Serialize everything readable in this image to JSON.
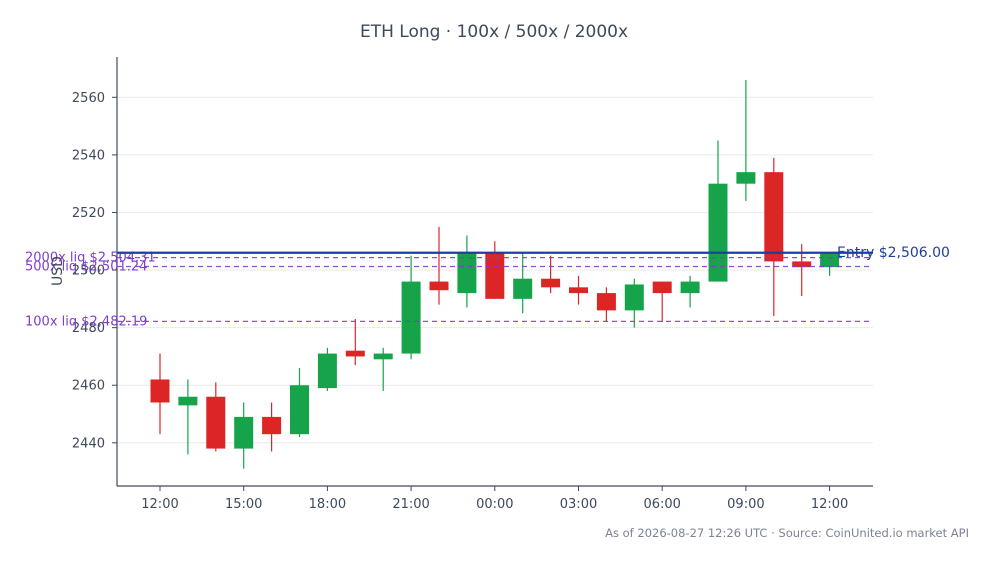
{
  "chart_data": {
    "type": "candlestick",
    "title": "ETH Long · 100x / 500x / 2000x",
    "ylabel": "USD",
    "xlabel": "",
    "ylim": [
      2425,
      2574
    ],
    "yticks": [
      2440,
      2460,
      2480,
      2500,
      2520,
      2540,
      2560
    ],
    "xticks": [
      "12:00",
      "15:00",
      "18:00",
      "21:00",
      "00:00",
      "03:00",
      "06:00",
      "09:00",
      "12:00"
    ],
    "xtick_index": [
      0,
      3,
      6,
      9,
      12,
      15,
      18,
      21,
      24
    ],
    "grid": true,
    "up_color": "#16a34a",
    "down_color": "#dc2626",
    "candles": [
      {
        "o": 2462,
        "h": 2471,
        "l": 2443,
        "c": 2454
      },
      {
        "o": 2453,
        "h": 2462,
        "l": 2436,
        "c": 2456
      },
      {
        "o": 2456,
        "h": 2461,
        "l": 2437,
        "c": 2438
      },
      {
        "o": 2438,
        "h": 2454,
        "l": 2431,
        "c": 2449
      },
      {
        "o": 2449,
        "h": 2454,
        "l": 2437,
        "c": 2443
      },
      {
        "o": 2443,
        "h": 2466,
        "l": 2442,
        "c": 2460
      },
      {
        "o": 2459,
        "h": 2473,
        "l": 2458,
        "c": 2471
      },
      {
        "o": 2472,
        "h": 2483,
        "l": 2467,
        "c": 2470
      },
      {
        "o": 2469,
        "h": 2473,
        "l": 2458,
        "c": 2471
      },
      {
        "o": 2471,
        "h": 2505,
        "l": 2469,
        "c": 2496
      },
      {
        "o": 2496,
        "h": 2515,
        "l": 2488,
        "c": 2493
      },
      {
        "o": 2492,
        "h": 2512,
        "l": 2487,
        "c": 2506
      },
      {
        "o": 2506,
        "h": 2510,
        "l": 2490,
        "c": 2490
      },
      {
        "o": 2490,
        "h": 2506,
        "l": 2485,
        "c": 2497
      },
      {
        "o": 2497,
        "h": 2505,
        "l": 2492,
        "c": 2494
      },
      {
        "o": 2494,
        "h": 2498,
        "l": 2488,
        "c": 2492
      },
      {
        "o": 2492,
        "h": 2494,
        "l": 2482,
        "c": 2486
      },
      {
        "o": 2486,
        "h": 2497,
        "l": 2480,
        "c": 2495
      },
      {
        "o": 2496,
        "h": 2496,
        "l": 2482,
        "c": 2492
      },
      {
        "o": 2492,
        "h": 2498,
        "l": 2487,
        "c": 2496
      },
      {
        "o": 2496,
        "h": 2545,
        "l": 2496,
        "c": 2530
      },
      {
        "o": 2530,
        "h": 2566,
        "l": 2524,
        "c": 2534
      },
      {
        "o": 2534,
        "h": 2539,
        "l": 2484,
        "c": 2503
      },
      {
        "o": 2503,
        "h": 2509,
        "l": 2491,
        "c": 2501
      },
      {
        "o": 2501,
        "h": 2506,
        "l": 2498,
        "c": 2506
      }
    ],
    "entry": {
      "value": 2506.0,
      "label": "Entry $2,506.00",
      "color": "#1f3f9c"
    },
    "liquidations": [
      {
        "value": 2504.31,
        "label": "2000x liq $2,504.31"
      },
      {
        "value": 2501.24,
        "label": "500x liq $2,501.24"
      },
      {
        "value": 2482.19,
        "label": "100x liq $2,482.19"
      }
    ],
    "liq_color": "#7e3fc9",
    "footnote": "As of 2026-08-27 12:26 UTC · Source: CoinUnited.io market API"
  }
}
